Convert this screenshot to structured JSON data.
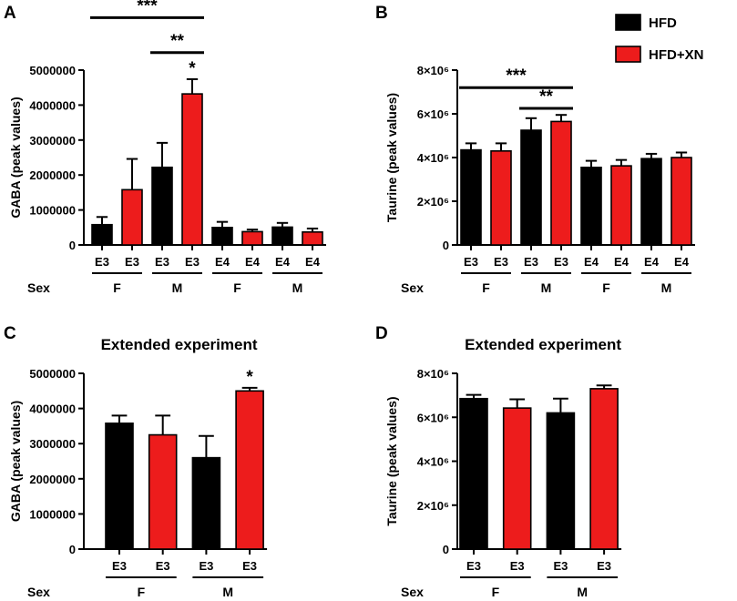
{
  "colors": {
    "HFD": "#000000",
    "HFD+XN": "#ed1c1c"
  },
  "legend": [
    {
      "label": "HFD",
      "color": "#000000"
    },
    {
      "label": "HFD+XN",
      "color": "#ed1c1c"
    }
  ],
  "chart_data": [
    {
      "panel": "A",
      "type": "bar",
      "title": "",
      "ylabel": "GABA (peak values)",
      "ylim": [
        0,
        5000000
      ],
      "yticks": [
        0,
        1000000,
        2000000,
        3000000,
        4000000,
        5000000
      ],
      "ytick_labels": [
        "0",
        "1000000",
        "2000000",
        "3000000",
        "4000000",
        "5000000"
      ],
      "sex_label": "Sex",
      "categories": [
        "E3",
        "E3",
        "E3",
        "E3",
        "E4",
        "E4",
        "E4",
        "E4"
      ],
      "groups": [
        "HFD",
        "HFD+XN",
        "HFD",
        "HFD+XN",
        "HFD",
        "HFD+XN",
        "HFD",
        "HFD+XN"
      ],
      "values": [
        580000,
        1580000,
        2220000,
        4320000,
        500000,
        380000,
        510000,
        370000
      ],
      "errors": [
        220000,
        880000,
        700000,
        420000,
        160000,
        60000,
        120000,
        100000
      ],
      "sex_groups": [
        {
          "label": "F",
          "bars": [
            0,
            1
          ]
        },
        {
          "label": "M",
          "bars": [
            2,
            3
          ]
        },
        {
          "label": "F",
          "bars": [
            4,
            5
          ]
        },
        {
          "label": "M",
          "bars": [
            6,
            7
          ]
        }
      ],
      "significance": [
        {
          "label": "***",
          "from": 0,
          "to": 3,
          "level": 6500000
        },
        {
          "label": "**",
          "from": 2,
          "to": 3,
          "level": 5500000
        }
      ],
      "bar_marks": [
        {
          "bar": 3,
          "label": "*"
        }
      ]
    },
    {
      "panel": "B",
      "type": "bar",
      "title": "",
      "ylabel": "Taurine (peak values)",
      "ylim": [
        0,
        8000000
      ],
      "yticks": [
        0,
        2000000,
        4000000,
        6000000,
        8000000
      ],
      "ytick_labels": [
        "0",
        "2×10⁶",
        "4×10⁶",
        "6×10⁶",
        "8×10⁶"
      ],
      "sex_label": "Sex",
      "categories": [
        "E3",
        "E3",
        "E3",
        "E3",
        "E4",
        "E4",
        "E4",
        "E4"
      ],
      "groups": [
        "HFD",
        "HFD+XN",
        "HFD",
        "HFD+XN",
        "HFD",
        "HFD+XN",
        "HFD",
        "HFD+XN"
      ],
      "values": [
        4350000,
        4300000,
        5250000,
        5650000,
        3550000,
        3620000,
        3950000,
        4000000
      ],
      "errors": [
        300000,
        350000,
        550000,
        300000,
        300000,
        270000,
        220000,
        230000
      ],
      "sex_groups": [
        {
          "label": "F",
          "bars": [
            0,
            1
          ]
        },
        {
          "label": "M",
          "bars": [
            2,
            3
          ]
        },
        {
          "label": "F",
          "bars": [
            4,
            5
          ]
        },
        {
          "label": "M",
          "bars": [
            6,
            7
          ]
        }
      ],
      "significance": [
        {
          "label": "***",
          "from": 0,
          "to": 3,
          "level": 7200000
        },
        {
          "label": "**",
          "from": 2,
          "to": 3,
          "level": 6250000
        }
      ],
      "bar_marks": []
    },
    {
      "panel": "C",
      "type": "bar",
      "title": "Extended experiment",
      "ylabel": "GABA (peak values)",
      "ylim": [
        0,
        5000000
      ],
      "yticks": [
        0,
        1000000,
        2000000,
        3000000,
        4000000,
        5000000
      ],
      "ytick_labels": [
        "0",
        "1000000",
        "2000000",
        "3000000",
        "4000000",
        "5000000"
      ],
      "sex_label": "Sex",
      "categories": [
        "E3",
        "E3",
        "E3",
        "E3"
      ],
      "groups": [
        "HFD",
        "HFD+XN",
        "HFD",
        "HFD+XN"
      ],
      "values": [
        3580000,
        3250000,
        2600000,
        4500000
      ],
      "errors": [
        220000,
        550000,
        620000,
        90000
      ],
      "sex_groups": [
        {
          "label": "F",
          "bars": [
            0,
            1
          ]
        },
        {
          "label": "M",
          "bars": [
            2,
            3
          ]
        }
      ],
      "significance": [],
      "bar_marks": [
        {
          "bar": 3,
          "label": "*"
        }
      ]
    },
    {
      "panel": "D",
      "type": "bar",
      "title": "Extended experiment",
      "ylabel": "Taurine (peak values)",
      "ylim": [
        0,
        8000000
      ],
      "yticks": [
        0,
        2000000,
        4000000,
        6000000,
        8000000
      ],
      "ytick_labels": [
        "0",
        "2×10⁶",
        "4×10⁶",
        "6×10⁶",
        "8×10⁶"
      ],
      "sex_label": "Sex",
      "categories": [
        "E3",
        "E3",
        "E3",
        "E3"
      ],
      "groups": [
        "HFD",
        "HFD+XN",
        "HFD",
        "HFD+XN"
      ],
      "values": [
        6850000,
        6420000,
        6200000,
        7300000
      ],
      "errors": [
        170000,
        400000,
        650000,
        150000
      ],
      "sex_groups": [
        {
          "label": "F",
          "bars": [
            0,
            1
          ]
        },
        {
          "label": "M",
          "bars": [
            2,
            3
          ]
        }
      ],
      "significance": [],
      "bar_marks": []
    }
  ]
}
